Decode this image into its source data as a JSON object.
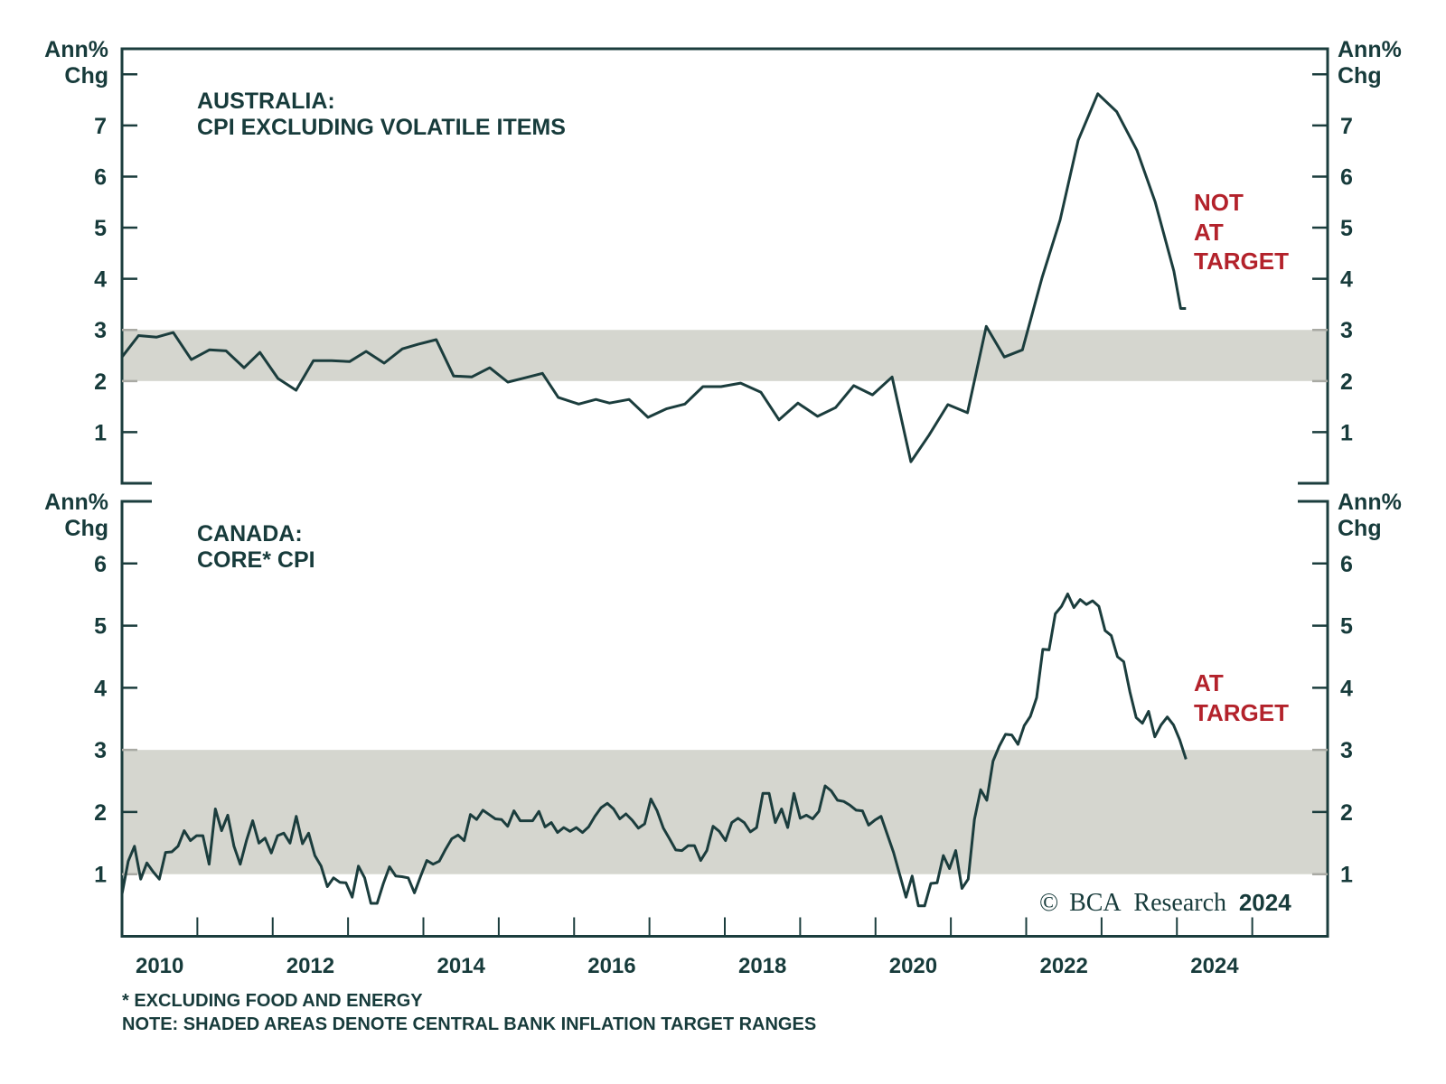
{
  "colors": {
    "line": "#1b3d3d",
    "band": "#d5d6cf",
    "text": "#173b3b",
    "annotation": "#b3222b",
    "axis": "#1b3d3d"
  },
  "chart_data": [
    {
      "type": "line",
      "title_line1": "AUSTRALIA:",
      "title_line2": "CPI EXCLUDING VOLATILE ITEMS",
      "ylabel_line1": "Ann%",
      "ylabel_line2": "Chg",
      "ylim": [
        0,
        8.5
      ],
      "yticks": [
        1,
        2,
        3,
        4,
        5,
        6,
        7,
        8
      ],
      "ytick_labels": [
        "1",
        "2",
        "3",
        "4",
        "5",
        "6",
        "7"
      ],
      "xlim": [
        2010,
        2026
      ],
      "target_band": [
        2,
        3
      ],
      "annotation": [
        "NOT",
        "AT",
        "TARGET"
      ],
      "series": [
        {
          "name": "Australia CPI excluding volatile items",
          "x": [
            2010.0,
            2010.22,
            2010.46,
            2010.68,
            2010.92,
            2011.16,
            2011.38,
            2011.62,
            2011.83,
            2012.07,
            2012.31,
            2012.54,
            2012.78,
            2013.02,
            2013.24,
            2013.48,
            2013.72,
            2013.93,
            2014.17,
            2014.4,
            2014.64,
            2014.88,
            2015.12,
            2015.34,
            2015.58,
            2015.79,
            2016.06,
            2016.29,
            2016.47,
            2016.73,
            2016.98,
            2017.23,
            2017.47,
            2017.71,
            2017.95,
            2018.21,
            2018.48,
            2018.72,
            2018.97,
            2019.23,
            2019.47,
            2019.71,
            2019.96,
            2020.22,
            2020.47,
            2020.71,
            2020.96,
            2021.22,
            2021.47,
            2021.71,
            2021.95,
            2022.21,
            2022.45,
            2022.69,
            2022.95,
            2023.2,
            2023.47,
            2023.71,
            2023.96,
            2024.05,
            2024.12
          ],
          "values": [
            2.47,
            2.89,
            2.86,
            2.95,
            2.42,
            2.61,
            2.59,
            2.26,
            2.56,
            2.05,
            1.82,
            2.4,
            2.4,
            2.38,
            2.58,
            2.35,
            2.63,
            2.72,
            2.81,
            2.1,
            2.08,
            2.26,
            1.98,
            2.06,
            2.15,
            1.68,
            1.55,
            1.64,
            1.57,
            1.64,
            1.29,
            1.46,
            1.55,
            1.89,
            1.89,
            1.96,
            1.78,
            1.24,
            1.57,
            1.31,
            1.48,
            1.91,
            1.73,
            2.08,
            0.42,
            0.94,
            1.54,
            1.38,
            3.07,
            2.47,
            2.61,
            4.02,
            5.15,
            6.71,
            7.62,
            7.27,
            6.51,
            5.51,
            4.15,
            3.42,
            3.42
          ]
        }
      ]
    },
    {
      "type": "line",
      "title_line1": "CANADA:",
      "title_line2": "CORE* CPI",
      "ylabel_line1": "Ann%",
      "ylabel_line2": "Chg",
      "ylim": [
        0,
        7
      ],
      "yticks": [
        1,
        2,
        3,
        4,
        5,
        6
      ],
      "ytick_labels": [
        "1",
        "2",
        "3",
        "4",
        "5",
        "6"
      ],
      "xlim": [
        2010,
        2026
      ],
      "xticks": [
        2010,
        2011,
        2012,
        2013,
        2014,
        2015,
        2016,
        2017,
        2018,
        2019,
        2020,
        2021,
        2022,
        2023,
        2024,
        2025
      ],
      "xtick_labels": [
        "2010",
        "2012",
        "2014",
        "2016",
        "2018",
        "2020",
        "2022",
        "2024"
      ],
      "target_band": [
        1,
        3
      ],
      "annotation": [
        "AT",
        "TARGET"
      ],
      "series": [
        {
          "name": "Canada core CPI",
          "x_start": 2010.0,
          "x_end": 2024.12,
          "frequency": "monthly",
          "values": [
            0.68,
            1.21,
            1.45,
            0.92,
            1.18,
            1.04,
            0.92,
            1.35,
            1.36,
            1.45,
            1.7,
            1.54,
            1.62,
            1.62,
            1.16,
            2.05,
            1.7,
            1.95,
            1.45,
            1.16,
            1.54,
            1.86,
            1.5,
            1.58,
            1.34,
            1.62,
            1.66,
            1.5,
            1.93,
            1.49,
            1.66,
            1.3,
            1.13,
            0.8,
            0.94,
            0.87,
            0.86,
            0.63,
            1.13,
            0.94,
            0.53,
            0.53,
            0.85,
            1.12,
            0.97,
            0.96,
            0.94,
            0.7,
            0.97,
            1.22,
            1.16,
            1.21,
            1.4,
            1.57,
            1.63,
            1.54,
            1.96,
            1.88,
            2.03,
            1.96,
            1.89,
            1.88,
            1.77,
            2.02,
            1.86,
            1.86,
            1.86,
            2.01,
            1.76,
            1.83,
            1.67,
            1.75,
            1.69,
            1.75,
            1.67,
            1.76,
            1.93,
            2.07,
            2.14,
            2.05,
            1.89,
            1.97,
            1.87,
            1.74,
            1.81,
            2.21,
            2.02,
            1.74,
            1.57,
            1.39,
            1.38,
            1.46,
            1.46,
            1.22,
            1.38,
            1.77,
            1.69,
            1.54,
            1.83,
            1.9,
            1.83,
            1.68,
            1.75,
            2.3,
            2.3,
            1.83,
            2.05,
            1.75,
            2.3,
            1.9,
            1.95,
            1.89,
            2.01,
            2.42,
            2.34,
            2.19,
            2.17,
            2.11,
            2.03,
            2.02,
            1.79,
            1.87,
            1.93,
            1.64,
            1.35,
            0.99,
            0.63,
            0.97,
            0.49,
            0.49,
            0.85,
            0.86,
            1.3,
            1.09,
            1.38,
            0.77,
            0.92,
            1.88,
            2.36,
            2.19,
            2.82,
            3.06,
            3.25,
            3.24,
            3.09,
            3.39,
            3.54,
            3.84,
            4.62,
            4.61,
            5.19,
            5.31,
            5.51,
            5.29,
            5.42,
            5.34,
            5.4,
            5.31,
            4.92,
            4.84,
            4.5,
            4.42,
            3.93,
            3.52,
            3.43,
            3.62,
            3.21,
            3.4,
            3.53,
            3.4,
            3.16,
            2.85
          ]
        }
      ]
    }
  ],
  "copyright": {
    "symbol": "©",
    "brand": "BCA",
    "text": "Research",
    "year": "2024"
  },
  "footnotes": [
    "* EXCLUDING FOOD AND ENERGY",
    "NOTE: SHADED AREAS DENOTE CENTRAL BANK INFLATION TARGET RANGES"
  ]
}
